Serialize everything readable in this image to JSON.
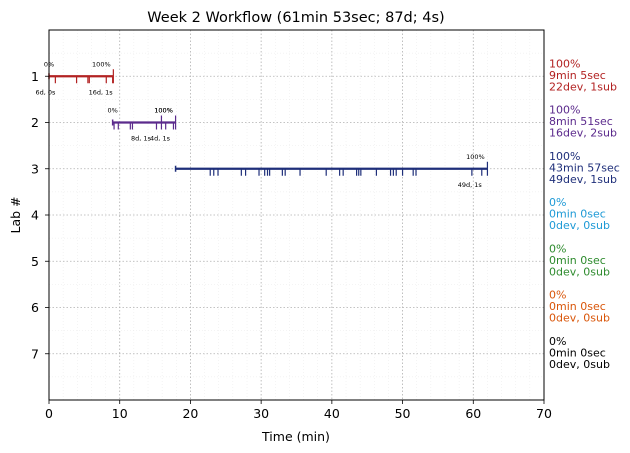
{
  "chart_data": {
    "type": "line",
    "title": "Week 2 Workflow (61min 53sec; 87d; 4s)",
    "xlabel": "Time (min)",
    "ylabel": "Lab #",
    "xlim": [
      0,
      70
    ],
    "ylim": [
      8,
      0
    ],
    "xticks": [
      0,
      10,
      20,
      30,
      40,
      50,
      60,
      70
    ],
    "yticks": [
      1,
      2,
      3,
      4,
      5,
      6,
      7
    ],
    "grid": true,
    "series": [
      {
        "lab": 1,
        "color": "#b22222",
        "start": 0,
        "end": 9.1,
        "start_label": "0%",
        "end_label": "100%",
        "bottom_labels": [
          {
            "x": -0.5,
            "text": "6d, 0s"
          },
          {
            "x": 7.3,
            "text": "16d, 1s"
          }
        ],
        "ticks_down": [
          0.9,
          3.9,
          5.5,
          5.7,
          8.1,
          9.0
        ],
        "ticks_up": [
          9.1
        ],
        "summary": [
          "100%",
          "9min 5sec",
          "22dev, 1sub"
        ]
      },
      {
        "lab": 2,
        "color": "#5b2a8c",
        "start": 9.0,
        "end": 17.9,
        "start_label": "0%",
        "end_label": "100%",
        "mid_label": "100%",
        "bottom_labels": [
          {
            "x": 13.0,
            "text": "8d, 1s"
          },
          {
            "x": 15.7,
            "text": "4d, 1s"
          }
        ],
        "ticks_down": [
          9.2,
          9.8,
          11.5,
          11.8,
          15.2,
          16.5,
          17.6
        ],
        "ticks_up": [
          15.9,
          17.9
        ],
        "summary": [
          "100%",
          "8min 51sec",
          "16dev, 2sub"
        ]
      },
      {
        "lab": 3,
        "color": "#1f2f7a",
        "start": 17.9,
        "end": 62.0,
        "start_label": "",
        "end_label": "100%",
        "bottom_labels": [
          {
            "x": 59.5,
            "text": "49d, 1s"
          }
        ],
        "ticks_down": [
          22.8,
          23.3,
          23.9,
          27.2,
          27.8,
          29.7,
          30.5,
          30.9,
          31.2,
          33.0,
          33.4,
          35.5,
          39.2,
          41.1,
          41.6,
          43.5,
          43.8,
          44.1,
          46.3,
          48.3,
          48.7,
          49.1,
          50.0,
          51.5,
          51.9,
          59.8,
          61.2
        ],
        "ticks_up": [
          62.0
        ],
        "summary": [
          "100%",
          "43min 57sec",
          "49dev, 1sub"
        ]
      },
      {
        "lab": 4,
        "color": "#1e9ad6",
        "summary": [
          "0%",
          "0min 0sec",
          "0dev, 0sub"
        ]
      },
      {
        "lab": 5,
        "color": "#2e8b2e",
        "summary": [
          "0%",
          "0min 0sec",
          "0dev, 0sub"
        ]
      },
      {
        "lab": 6,
        "color": "#d9560a",
        "summary": [
          "0%",
          "0min 0sec",
          "0dev, 0sub"
        ]
      },
      {
        "lab": 7,
        "color": "#000000",
        "summary": [
          "0%",
          "0min 0sec",
          "0dev, 0sub"
        ]
      }
    ]
  }
}
